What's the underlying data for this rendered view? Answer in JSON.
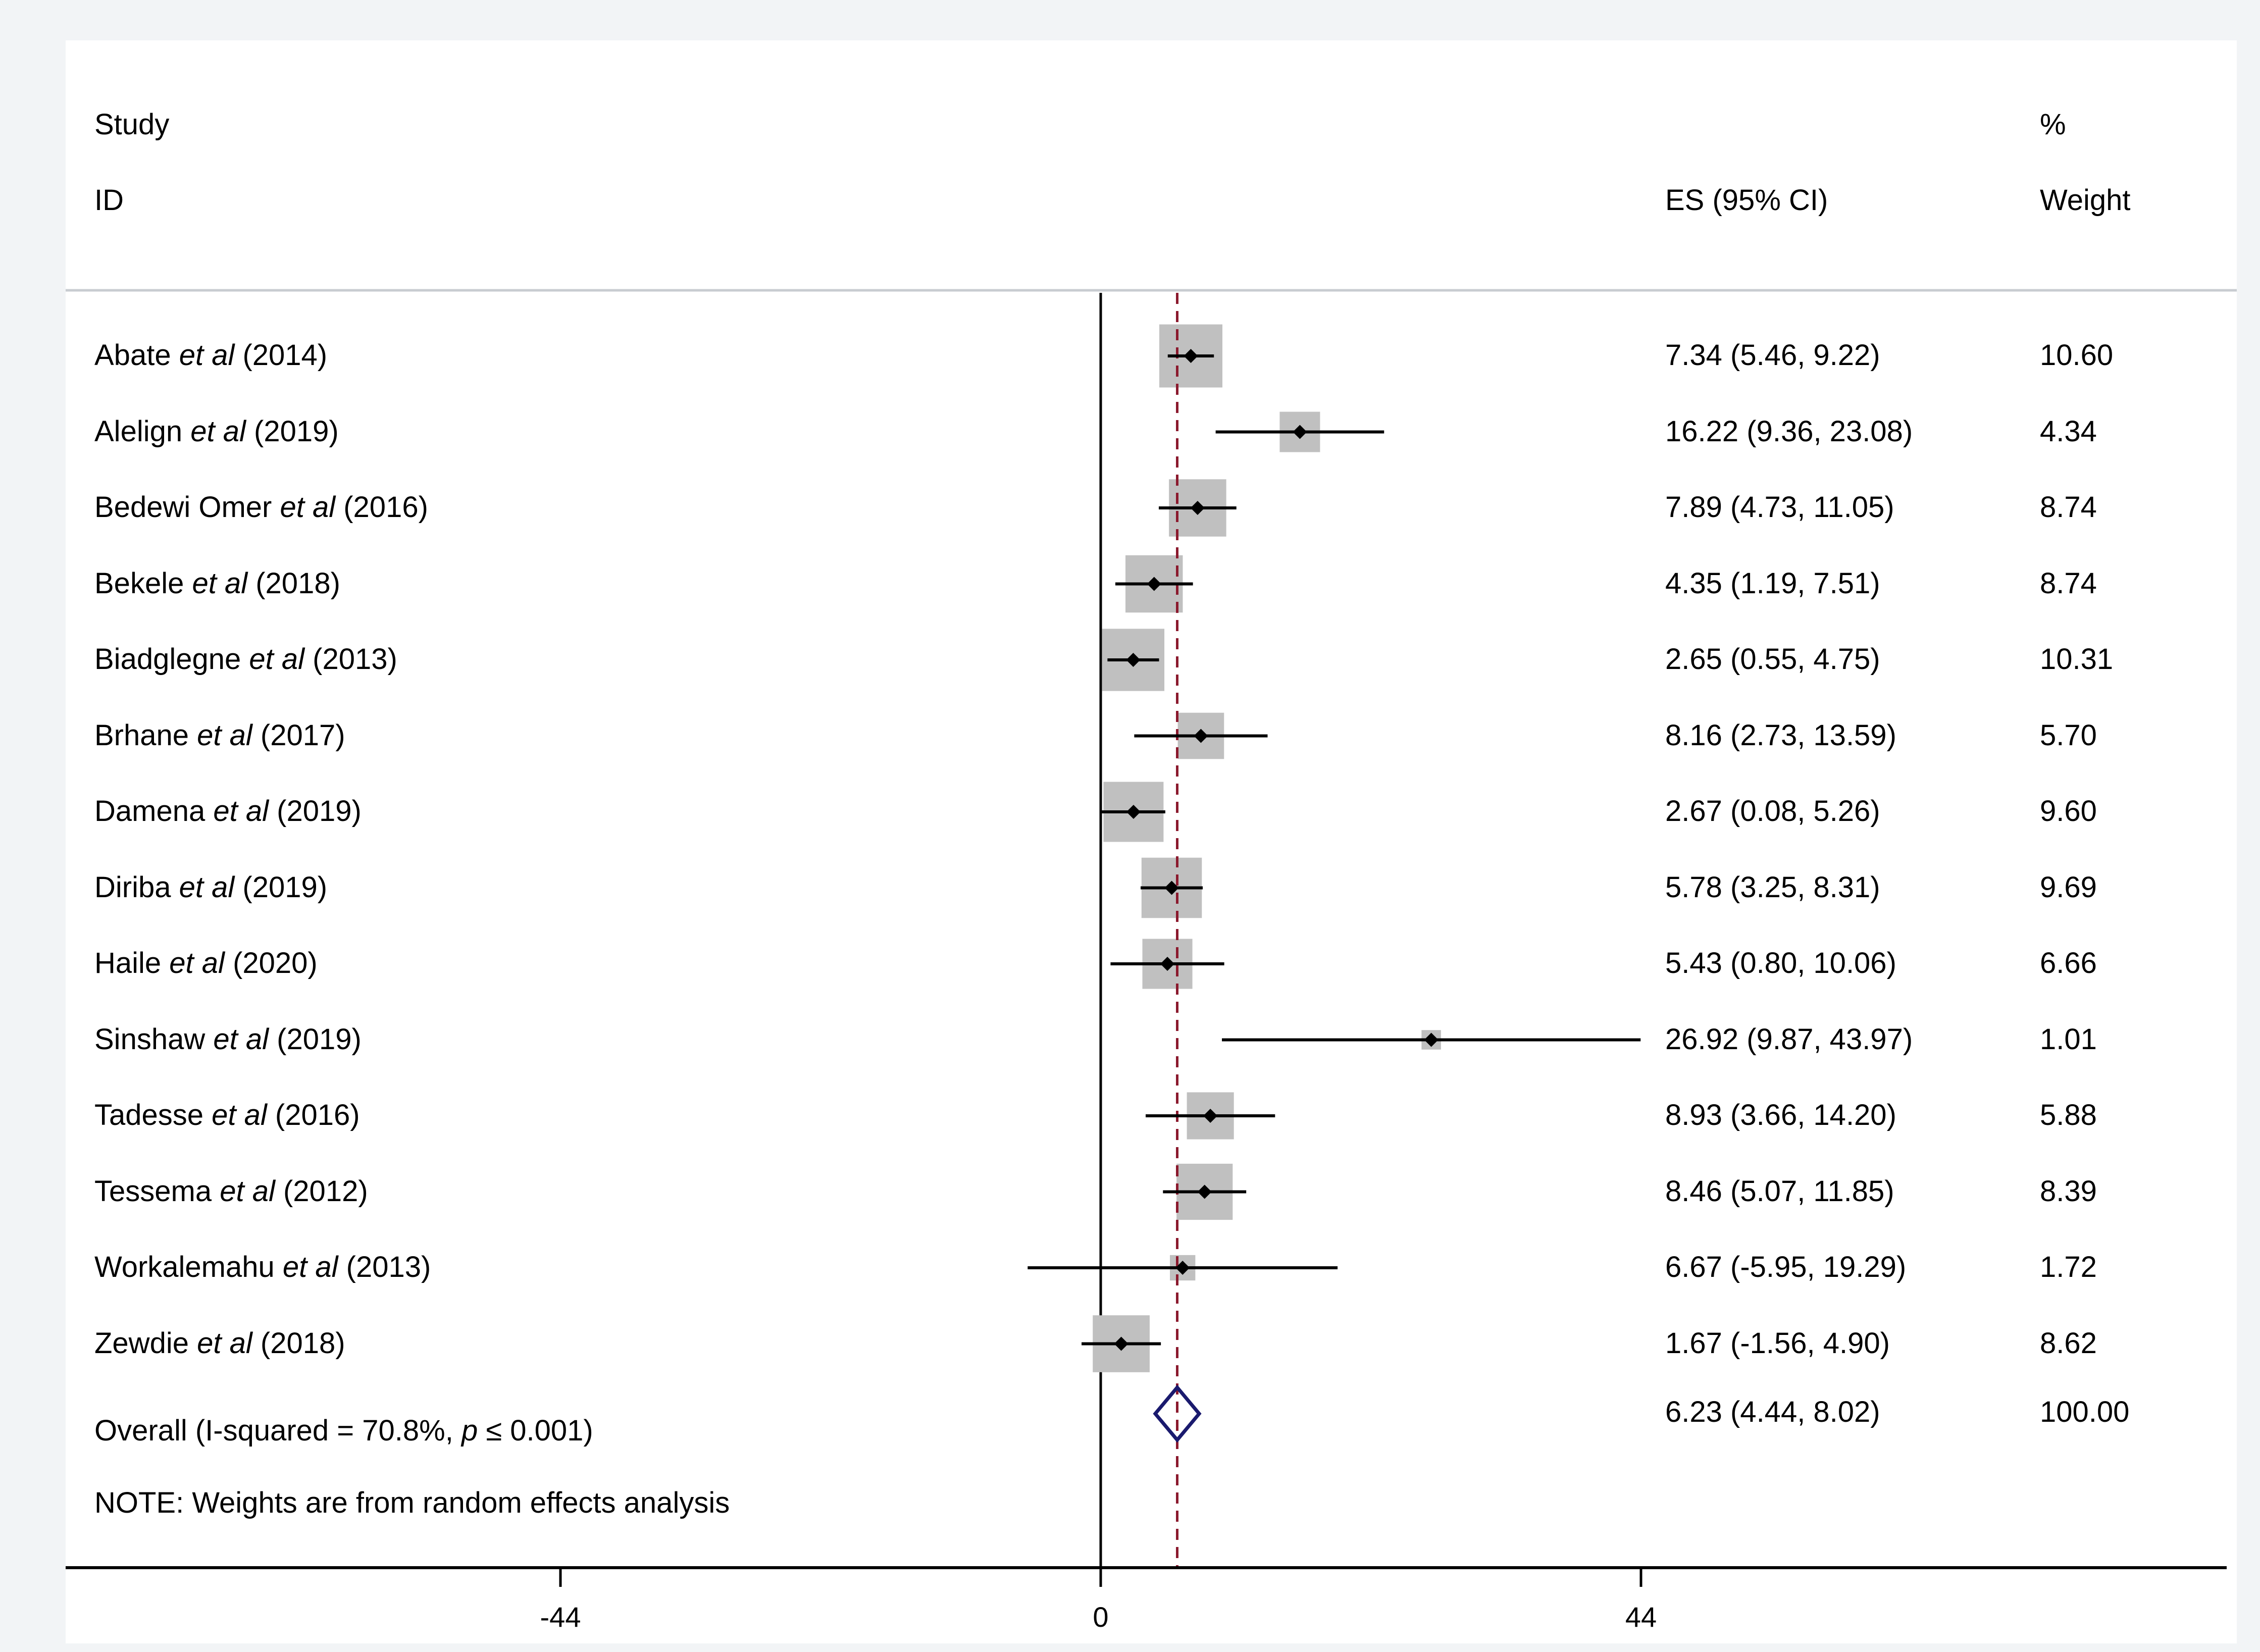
{
  "chart_data": {
    "type": "forest",
    "headers": {
      "study": "Study",
      "id": "ID",
      "es": "ES (95% CI)",
      "percent": "%",
      "weight": "Weight"
    },
    "studies": [
      {
        "author": "Abate",
        "etal": "et al",
        "year": "(2014)",
        "es": 7.34,
        "lo": 5.46,
        "hi": 9.22,
        "es_label": "7.34 (5.46, 9.22)",
        "weight": 10.6,
        "weight_label": "10.60"
      },
      {
        "author": "Alelign",
        "etal": "et al",
        "year": "(2019)",
        "es": 16.22,
        "lo": 9.36,
        "hi": 23.08,
        "es_label": "16.22 (9.36, 23.08)",
        "weight": 4.34,
        "weight_label": "4.34"
      },
      {
        "author": "Bedewi Omer",
        "etal": "et al",
        "year": "(2016)",
        "es": 7.89,
        "lo": 4.73,
        "hi": 11.05,
        "es_label": "7.89 (4.73, 11.05)",
        "weight": 8.74,
        "weight_label": "8.74"
      },
      {
        "author": "Bekele",
        "etal": "et al",
        "year": "(2018)",
        "es": 4.35,
        "lo": 1.19,
        "hi": 7.51,
        "es_label": "4.35 (1.19, 7.51)",
        "weight": 8.74,
        "weight_label": "8.74"
      },
      {
        "author": "Biadglegne",
        "etal": "et al",
        "year": "(2013)",
        "es": 2.65,
        "lo": 0.55,
        "hi": 4.75,
        "es_label": "2.65 (0.55, 4.75)",
        "weight": 10.31,
        "weight_label": "10.31"
      },
      {
        "author": "Brhane",
        "etal": "et al",
        "year": "(2017)",
        "es": 8.16,
        "lo": 2.73,
        "hi": 13.59,
        "es_label": "8.16 (2.73, 13.59)",
        "weight": 5.7,
        "weight_label": "5.70"
      },
      {
        "author": "Damena",
        "etal": "et al",
        "year": "(2019)",
        "es": 2.67,
        "lo": 0.08,
        "hi": 5.26,
        "es_label": "2.67 (0.08, 5.26)",
        "weight": 9.6,
        "weight_label": "9.60"
      },
      {
        "author": "Diriba",
        "etal": "et al",
        "year": "(2019)",
        "es": 5.78,
        "lo": 3.25,
        "hi": 8.31,
        "es_label": "5.78 (3.25, 8.31)",
        "weight": 9.69,
        "weight_label": "9.69"
      },
      {
        "author": "Haile",
        "etal": "et al",
        "year": "(2020)",
        "es": 5.43,
        "lo": 0.8,
        "hi": 10.06,
        "es_label": "5.43 (0.80, 10.06)",
        "weight": 6.66,
        "weight_label": "6.66"
      },
      {
        "author": "Sinshaw",
        "etal": "et al",
        "year": "(2019)",
        "es": 26.92,
        "lo": 9.87,
        "hi": 43.97,
        "es_label": "26.92 (9.87, 43.97)",
        "weight": 1.01,
        "weight_label": "1.01"
      },
      {
        "author": "Tadesse",
        "etal": "et al",
        "year": "(2016)",
        "es": 8.93,
        "lo": 3.66,
        "hi": 14.2,
        "es_label": "8.93 (3.66, 14.20)",
        "weight": 5.88,
        "weight_label": "5.88"
      },
      {
        "author": "Tessema",
        "etal": "et al",
        "year": "(2012)",
        "es": 8.46,
        "lo": 5.07,
        "hi": 11.85,
        "es_label": "8.46 (5.07, 11.85)",
        "weight": 8.39,
        "weight_label": "8.39"
      },
      {
        "author": "Workalemahu",
        "etal": "et al",
        "year": "(2013)",
        "es": 6.67,
        "lo": -5.95,
        "hi": 19.29,
        "es_label": "6.67 (-5.95, 19.29)",
        "weight": 1.72,
        "weight_label": "1.72"
      },
      {
        "author": "Zewdie",
        "etal": "et al",
        "year": "(2018)",
        "es": 1.67,
        "lo": -1.56,
        "hi": 4.9,
        "es_label": "1.67 (-1.56, 4.90)",
        "weight": 8.62,
        "weight_label": "8.62"
      }
    ],
    "overall": {
      "label_prefix": "Overall (I-squared = 70.8%, ",
      "label_p": "p",
      "label_suffix": " ≤ 0.001)",
      "es": 6.23,
      "lo": 4.44,
      "hi": 8.02,
      "es_label": "6.23 (4.44, 8.02)",
      "weight_label": "100.00"
    },
    "note": "NOTE: Weights are from random effects analysis",
    "x_axis": {
      "ticks": [
        -44,
        0,
        44
      ],
      "tick_labels": [
        "-44",
        "0",
        "44"
      ],
      "range": [
        -44,
        44
      ]
    },
    "null_line": 0,
    "colors": {
      "box": "#c0c0c0",
      "ci": "#000000",
      "diamond": "#1a1a6e",
      "overall_line": "#8b1a2e",
      "divider": "#c8ccd0"
    }
  }
}
